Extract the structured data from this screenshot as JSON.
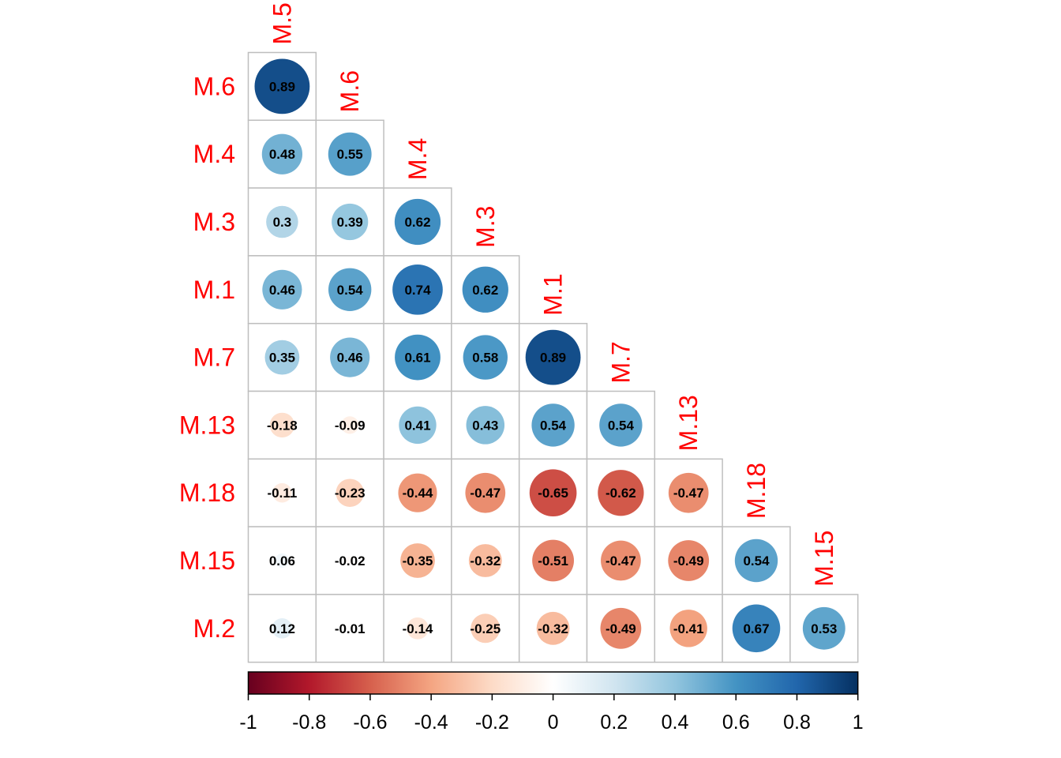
{
  "chart_data": {
    "type": "heatmap",
    "variables": [
      "M.5",
      "M.6",
      "M.4",
      "M.3",
      "M.1",
      "M.7",
      "M.13",
      "M.18",
      "M.15",
      "M.2"
    ],
    "matrix": [
      [
        0.89
      ],
      [
        0.48,
        0.55
      ],
      [
        0.3,
        0.39,
        0.62
      ],
      [
        0.46,
        0.54,
        0.74,
        0.62
      ],
      [
        0.35,
        0.46,
        0.61,
        0.58,
        0.89
      ],
      [
        -0.18,
        -0.09,
        0.41,
        0.43,
        0.54,
        0.54
      ],
      [
        -0.11,
        -0.23,
        -0.44,
        -0.47,
        -0.65,
        -0.62,
        -0.47
      ],
      [
        0.06,
        -0.02,
        -0.35,
        -0.32,
        -0.51,
        -0.47,
        -0.49,
        0.54
      ],
      [
        0.12,
        -0.01,
        -0.14,
        -0.25,
        -0.32,
        -0.49,
        -0.41,
        0.67,
        0.53
      ]
    ],
    "colorbar": {
      "range": [
        -1,
        1
      ],
      "ticks": [
        "-1",
        "-0.8",
        "-0.6",
        "-0.4",
        "-0.2",
        "0",
        "0.2",
        "0.4",
        "0.6",
        "0.8",
        "1"
      ]
    },
    "colors": {
      "label": "#ff0000",
      "grid": "#bebebe",
      "scale": [
        "#67001F",
        "#B2182B",
        "#D6604D",
        "#F4A582",
        "#FDDBC7",
        "#FFFFFF",
        "#D1E5F0",
        "#92C5DE",
        "#4393C3",
        "#2166AC",
        "#053061"
      ]
    },
    "lower_triangle": true,
    "diagonal_shown": false,
    "method": "circle"
  }
}
